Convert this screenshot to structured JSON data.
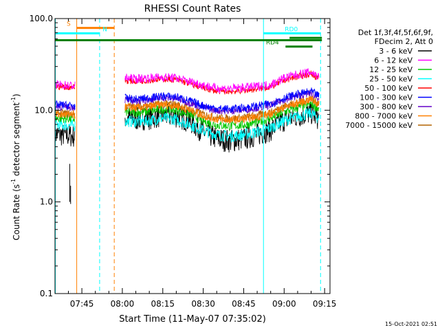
{
  "chart_data": {
    "type": "line",
    "title": "RHESSI Count Rates",
    "xlabel": "Start Time (11-May-07 07:35:02)",
    "ylabel": "Count Rate (s",
    "ylabel_sup1": "-1",
    "ylabel_mid": " detector segment",
    "ylabel_sup2": "-1",
    "ylabel_end": ")",
    "y_scale": "log",
    "ylim": [
      0.1,
      100.0
    ],
    "xlim": [
      "07:35:02",
      "09:17:00"
    ],
    "x_ticks": [
      {
        "t": "07:45",
        "label": "07:45"
      },
      {
        "t": "08:00",
        "label": "08:00"
      },
      {
        "t": "08:15",
        "label": "08:15"
      },
      {
        "t": "08:30",
        "label": "08:30"
      },
      {
        "t": "08:45",
        "label": "08:45"
      },
      {
        "t": "09:00",
        "label": "09:00"
      },
      {
        "t": "09:15",
        "label": "09:15"
      }
    ],
    "y_ticks": [
      {
        "v": 0.1,
        "label": "0.1"
      },
      {
        "v": 1.0,
        "label": "1.0"
      },
      {
        "v": 10.0,
        "label": "10.0"
      },
      {
        "v": 100.0,
        "label": "100.0"
      }
    ],
    "legend_header": [
      "Det 1f,3f,4f,5f,6f,9f,",
      "FDecim 2, Att 0"
    ],
    "legend_position": "right",
    "series": [
      {
        "name": "3 - 6 keV",
        "color": "#000000",
        "pre": [
          [
            "07:35:02",
            5.5
          ],
          [
            "07:42:30",
            5.2
          ]
        ],
        "main": [
          [
            "08:01",
            8.2
          ],
          [
            "08:05",
            8.0
          ],
          [
            "08:10",
            8.2
          ],
          [
            "08:15",
            8.8
          ],
          [
            "08:20",
            8.6
          ],
          [
            "08:25",
            7.6
          ],
          [
            "08:30",
            5.8
          ],
          [
            "08:35",
            4.9
          ],
          [
            "08:40",
            4.6
          ],
          [
            "08:45",
            4.9
          ],
          [
            "08:50",
            5.4
          ],
          [
            "08:55",
            6.1
          ],
          [
            "09:00",
            7.8
          ],
          [
            "09:05",
            8.6
          ],
          [
            "09:10",
            9.4
          ],
          [
            "09:13",
            8.0
          ]
        ]
      },
      {
        "name": "6 - 12 keV",
        "color": "#ff00ff",
        "pre": [
          [
            "07:35:02",
            19.0
          ],
          [
            "07:42:30",
            18.5
          ]
        ],
        "main": [
          [
            "08:01",
            22.5
          ],
          [
            "08:05",
            22.0
          ],
          [
            "08:10",
            22.5
          ],
          [
            "08:15",
            23.0
          ],
          [
            "08:20",
            22.5
          ],
          [
            "08:25",
            20.5
          ],
          [
            "08:30",
            18.8
          ],
          [
            "08:35",
            17.3
          ],
          [
            "08:40",
            17.2
          ],
          [
            "08:45",
            17.6
          ],
          [
            "08:50",
            18.2
          ],
          [
            "08:55",
            19.0
          ],
          [
            "09:00",
            22.5
          ],
          [
            "09:05",
            24.5
          ],
          [
            "09:10",
            26.0
          ],
          [
            "09:13",
            23.0
          ]
        ]
      },
      {
        "name": "12 - 25 keV",
        "color": "#00c800",
        "pre": [
          [
            "07:35:02",
            8.2
          ],
          [
            "07:42:30",
            8.0
          ]
        ],
        "main": [
          [
            "08:01",
            9.6
          ],
          [
            "08:05",
            9.4
          ],
          [
            "08:10",
            9.7
          ],
          [
            "08:15",
            10.3
          ],
          [
            "08:20",
            10.0
          ],
          [
            "08:25",
            9.0
          ],
          [
            "08:30",
            7.6
          ],
          [
            "08:35",
            6.9
          ],
          [
            "08:40",
            6.7
          ],
          [
            "08:45",
            6.9
          ],
          [
            "08:50",
            7.4
          ],
          [
            "08:55",
            8.1
          ],
          [
            "09:00",
            9.6
          ],
          [
            "09:05",
            10.6
          ],
          [
            "09:10",
            11.8
          ],
          [
            "09:13",
            10.2
          ]
        ]
      },
      {
        "name": "25 - 50 keV",
        "color": "#00ffff",
        "pre": [
          [
            "07:35:02",
            7.0
          ],
          [
            "07:42:30",
            6.8
          ]
        ],
        "main": [
          [
            "08:01",
            7.6
          ],
          [
            "08:05",
            7.5
          ],
          [
            "08:10",
            7.7
          ],
          [
            "08:15",
            8.2
          ],
          [
            "08:20",
            7.9
          ],
          [
            "08:25",
            7.0
          ],
          [
            "08:30",
            6.0
          ],
          [
            "08:35",
            5.4
          ],
          [
            "08:40",
            5.2
          ],
          [
            "08:45",
            5.4
          ],
          [
            "08:50",
            5.8
          ],
          [
            "08:55",
            6.4
          ],
          [
            "09:00",
            7.7
          ],
          [
            "09:05",
            8.5
          ],
          [
            "09:10",
            9.3
          ],
          [
            "09:13",
            8.0
          ]
        ]
      },
      {
        "name": "50 - 100 keV",
        "color": "#ff0000",
        "pre": [
          [
            "07:35:02",
            18.2
          ],
          [
            "07:42:30",
            17.8
          ]
        ],
        "main": [
          [
            "08:01",
            21.0
          ],
          [
            "08:05",
            20.7
          ],
          [
            "08:10",
            21.2
          ],
          [
            "08:15",
            22.0
          ],
          [
            "08:20",
            21.5
          ],
          [
            "08:25",
            19.5
          ],
          [
            "08:30",
            17.5
          ],
          [
            "08:35",
            16.2
          ],
          [
            "08:40",
            16.0
          ],
          [
            "08:45",
            16.4
          ],
          [
            "08:50",
            17.0
          ],
          [
            "08:55",
            18.0
          ],
          [
            "09:00",
            21.2
          ],
          [
            "09:05",
            23.3
          ],
          [
            "09:10",
            25.0
          ],
          [
            "09:13",
            22.0
          ]
        ]
      },
      {
        "name": "100 - 300 keV",
        "color": "#0000ff",
        "pre": [
          [
            "07:35:02",
            11.5
          ],
          [
            "07:42:30",
            11.2
          ]
        ],
        "main": [
          [
            "08:01",
            13.5
          ],
          [
            "08:05",
            13.2
          ],
          [
            "08:10",
            13.6
          ],
          [
            "08:15",
            14.3
          ],
          [
            "08:20",
            14.0
          ],
          [
            "08:25",
            12.6
          ],
          [
            "08:30",
            11.2
          ],
          [
            "08:35",
            10.4
          ],
          [
            "08:40",
            10.3
          ],
          [
            "08:45",
            10.6
          ],
          [
            "08:50",
            11.1
          ],
          [
            "08:55",
            11.8
          ],
          [
            "09:00",
            13.6
          ],
          [
            "09:05",
            14.9
          ],
          [
            "09:10",
            16.0
          ],
          [
            "09:13",
            14.2
          ]
        ]
      },
      {
        "name": "300 - 800 keV",
        "color": "#6400c8",
        "pre": [
          [
            "07:35:02",
            11.0
          ],
          [
            "07:42:30",
            10.8
          ]
        ],
        "main": [
          [
            "08:01",
            12.9
          ],
          [
            "08:05",
            12.6
          ],
          [
            "08:10",
            13.0
          ],
          [
            "08:15",
            13.7
          ],
          [
            "08:20",
            13.4
          ],
          [
            "08:25",
            12.0
          ],
          [
            "08:30",
            10.7
          ],
          [
            "08:35",
            9.9
          ],
          [
            "08:40",
            9.8
          ],
          [
            "08:45",
            10.1
          ],
          [
            "08:50",
            10.6
          ],
          [
            "08:55",
            11.3
          ],
          [
            "09:00",
            13.0
          ],
          [
            "09:05",
            14.3
          ],
          [
            "09:10",
            15.4
          ],
          [
            "09:13",
            13.6
          ]
        ]
      },
      {
        "name": "800 - 7000 keV",
        "color": "#ff8000",
        "pre": [
          [
            "07:35:02",
            9.0
          ],
          [
            "07:42:30",
            8.8
          ]
        ],
        "main": [
          [
            "08:01",
            10.8
          ],
          [
            "08:05",
            10.6
          ],
          [
            "08:10",
            10.9
          ],
          [
            "08:15",
            11.5
          ],
          [
            "08:20",
            11.2
          ],
          [
            "08:25",
            10.0
          ],
          [
            "08:30",
            8.7
          ],
          [
            "08:35",
            8.0
          ],
          [
            "08:40",
            7.8
          ],
          [
            "08:45",
            8.0
          ],
          [
            "08:50",
            8.5
          ],
          [
            "08:55",
            9.1
          ],
          [
            "09:00",
            10.8
          ],
          [
            "09:05",
            11.9
          ],
          [
            "09:10",
            13.2
          ],
          [
            "09:13",
            11.5
          ]
        ]
      },
      {
        "name": "7000 - 15000 keV",
        "color": "#b46400",
        "pre": [
          [
            "07:35:02",
            9.3
          ],
          [
            "07:42:30",
            9.1
          ]
        ],
        "main": [
          [
            "08:01",
            11.1
          ],
          [
            "08:05",
            10.9
          ],
          [
            "08:10",
            11.2
          ],
          [
            "08:15",
            11.8
          ],
          [
            "08:20",
            11.5
          ],
          [
            "08:25",
            10.3
          ],
          [
            "08:30",
            9.0
          ],
          [
            "08:35",
            8.3
          ],
          [
            "08:40",
            8.1
          ],
          [
            "08:45",
            8.3
          ],
          [
            "08:50",
            8.8
          ],
          [
            "08:55",
            9.4
          ],
          [
            "09:00",
            11.1
          ],
          [
            "09:05",
            12.2
          ],
          [
            "09:10",
            13.5
          ],
          [
            "09:13",
            11.8
          ]
        ]
      }
    ],
    "black_spikes": [
      {
        "t": "07:40:30",
        "from": 1.0,
        "to": 2.6
      },
      {
        "t": "07:40:50",
        "from": 0.95,
        "to": 1.5
      }
    ],
    "vertical_lines": [
      {
        "t": "07:35:10",
        "color": "#00ffff",
        "style": "solid"
      },
      {
        "t": "07:43:05",
        "color": "#ff8000",
        "style": "solid"
      },
      {
        "t": "07:51:35",
        "color": "#00ffff",
        "style": "dashed"
      },
      {
        "t": "07:57:00",
        "color": "#ff8000",
        "style": "dashed"
      },
      {
        "t": "08:52:20",
        "color": "#00ffff",
        "style": "solid"
      },
      {
        "t": "09:13:30",
        "color": "#00ffff",
        "style": "dashed"
      }
    ],
    "flag_bars": [
      {
        "label": "S",
        "color": "#ff8000",
        "t0": "07:43:05",
        "t1": "07:57:00",
        "y": 79.0,
        "label_at": "07:40:50",
        "label_side": "left"
      },
      {
        "label": "N",
        "color": "#00ffff",
        "t0": "07:35:02",
        "t1": "07:51:35",
        "y": 69.0,
        "label_at": "07:52:40",
        "label_side": "right"
      },
      {
        "label": "RD0",
        "color": "#00ffff",
        "t0": "08:52:20",
        "t1": "09:13:30",
        "y": 69.0,
        "label_at": "09:02:40",
        "label_side": "center"
      },
      {
        "label": "",
        "color": "#008000",
        "t0": "07:35:02",
        "t1": "09:14:00",
        "y": 58.0,
        "label_at": "",
        "label_side": ""
      },
      {
        "label": "",
        "color": "#008000",
        "t0": "09:02:00",
        "t1": "09:14:00",
        "y": 61.5,
        "label_at": "",
        "label_side": ""
      },
      {
        "label": "RD4",
        "color": "#008000",
        "t0": "09:00:30",
        "t1": "09:10:30",
        "y": 49.5,
        "label_at": "08:55:40",
        "label_side": "center"
      }
    ],
    "gap": [
      "07:43:05",
      "08:01:00"
    ]
  },
  "footer": {
    "timestamp": "15-Oct-2021 02:51"
  }
}
